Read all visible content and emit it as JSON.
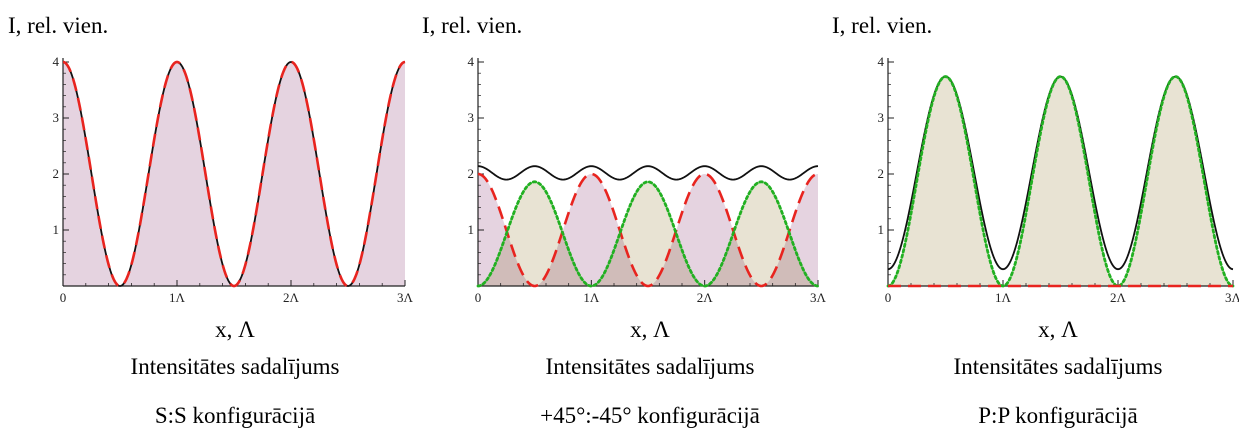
{
  "chart_data": [
    {
      "type": "area",
      "ylabel": "I, rel. vien.",
      "xlabel": "x, Λ",
      "caption_line1": "Intensitātes sadalījums",
      "caption_line2": "S:S  konfigurācijā",
      "x_ticks": [
        "0",
        "1Λ",
        "2Λ",
        "3Λ"
      ],
      "y_ticks": [
        "1",
        "2",
        "3",
        "4"
      ],
      "xlim": [
        0,
        3
      ],
      "ylim": [
        0,
        4
      ],
      "series": [
        {
          "style": "solid",
          "color": "#111111",
          "fill": "",
          "formula": "2 + 2cos(2πx)",
          "values_at_x0_x05": [
            4,
            0
          ]
        },
        {
          "style": "dashed",
          "color": "#e8241f",
          "fill": "#e5d3e0",
          "formula": "2 + 2cos(2πx)",
          "values_at_x0_x05": [
            4,
            0
          ]
        }
      ]
    },
    {
      "type": "area",
      "ylabel": "I, rel. vien.",
      "xlabel": "x, Λ",
      "caption_line1": "Intensitātes sadalījums",
      "caption_line2": "+45°:-45° konfigurācijā",
      "x_ticks": [
        "0",
        "1Λ",
        "2Λ",
        "3Λ"
      ],
      "y_ticks": [
        "1",
        "2",
        "3",
        "4"
      ],
      "xlim": [
        0,
        3
      ],
      "ylim": [
        0,
        4
      ],
      "series": [
        {
          "style": "solid",
          "color": "#111111",
          "fill": "",
          "formula": "2.02 + 0.12cos(4πx)",
          "values_at_x0_x025": [
            2.14,
            1.9
          ]
        },
        {
          "style": "dashed",
          "color": "#e8241f",
          "fill": "#e5d3e0",
          "formula": "1 + cos(2πx)",
          "values_at_x0_x05": [
            2,
            0
          ]
        },
        {
          "style": "dotted",
          "color": "#22b022",
          "fill": "#e8e3d3",
          "formula": "0.93 − 0.93cos(2πx)",
          "values_at_x0_x05": [
            0,
            1.86
          ]
        }
      ]
    },
    {
      "type": "area",
      "ylabel": "I, rel. vien.",
      "xlabel": "x, Λ",
      "caption_line1": "Intensitātes sadalījums",
      "caption_line2": "P:P  konfigurācijā",
      "x_ticks": [
        "0",
        "1Λ",
        "2Λ",
        "3Λ"
      ],
      "y_ticks": [
        "1",
        "2",
        "3",
        "4"
      ],
      "xlim": [
        0,
        3
      ],
      "ylim": [
        0,
        4
      ],
      "series": [
        {
          "style": "solid",
          "color": "#111111",
          "fill": "",
          "formula": "2.02 − 1.72cos(2πx)",
          "values_at_x0_x05": [
            0.3,
            3.74
          ]
        },
        {
          "style": "dotted",
          "color": "#22b022",
          "fill": "#e8e3d3",
          "formula": "1.87 − 1.87cos(2πx)",
          "values_at_x0_x05": [
            0,
            3.74
          ]
        },
        {
          "style": "dashed",
          "color": "#e8241f",
          "fill": "",
          "formula": "0",
          "values_at_x0_x05": [
            0,
            0
          ]
        }
      ]
    }
  ]
}
